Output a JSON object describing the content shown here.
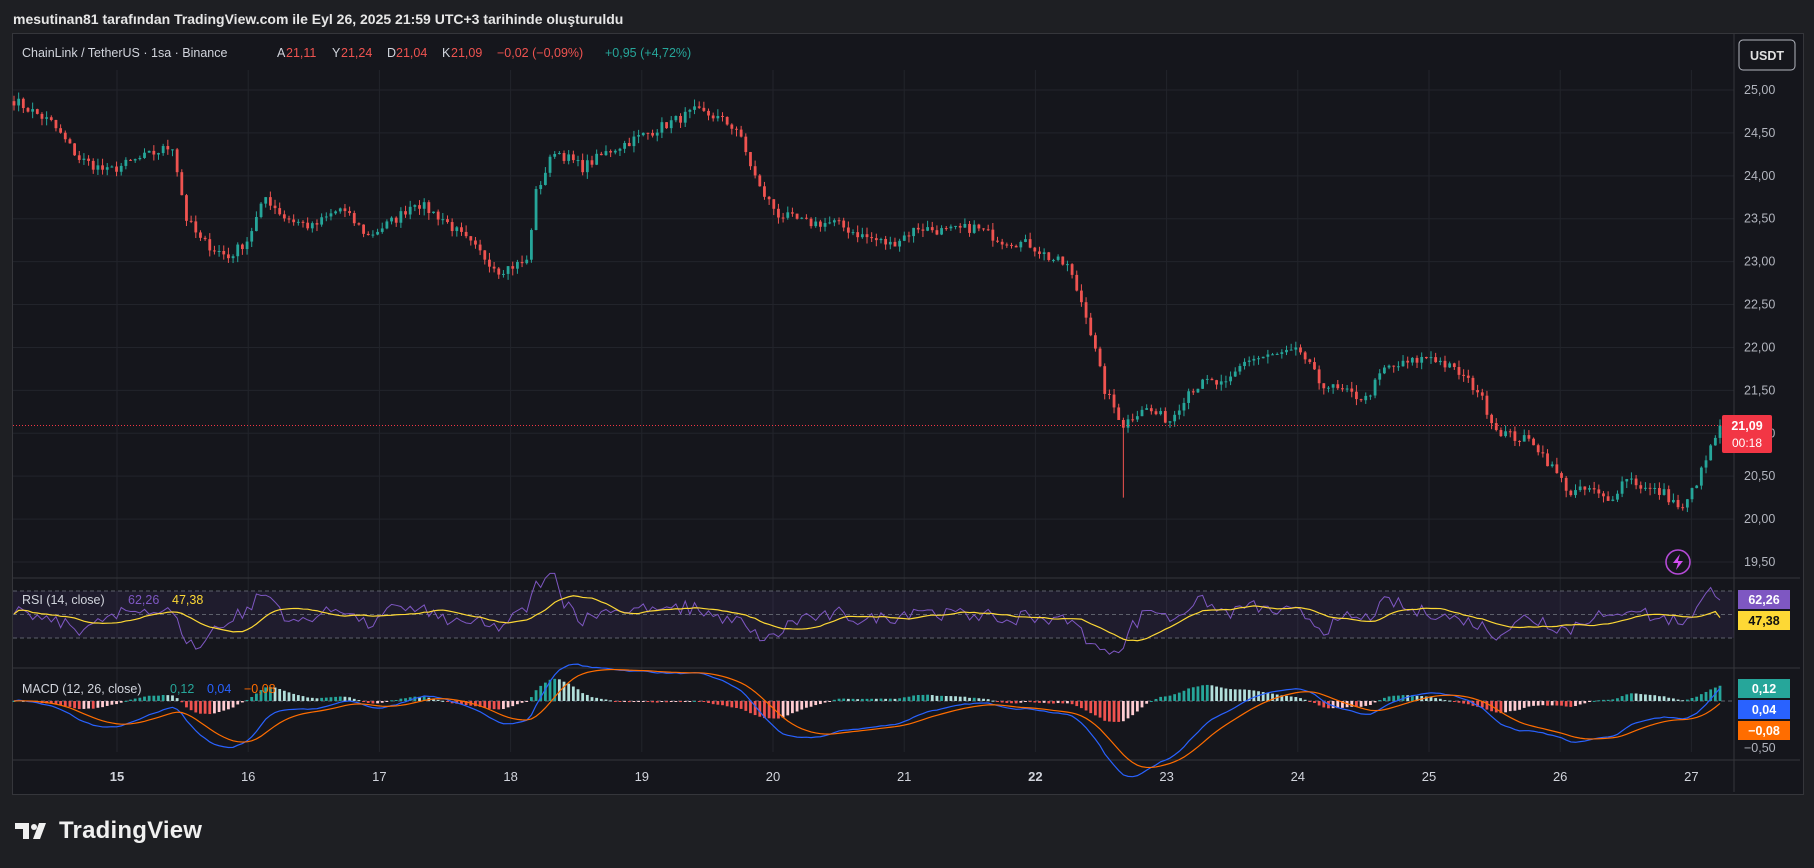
{
  "caption": "mesutinan81 tarafından TradingView.com ile Eyl 26, 2025 21:59 UTC+3 tarihinde oluşturuldu",
  "brand": "TradingView",
  "header": {
    "symbol": "ChainLink / TetherUS · 1sa · Binance",
    "o_label": "A",
    "o_value": "21,11",
    "h_label": "Y",
    "h_value": "21,24",
    "l_label": "D",
    "l_value": "21,04",
    "c_label": "K",
    "c_value": "21,09",
    "change": "−0,02 (−0,09%)",
    "change2": "+0,95 (+4,72%)"
  },
  "currency": "USDT",
  "colors": {
    "up": "#26a69a",
    "down": "#ef5350",
    "bg": "#15161c",
    "rsi": "#7e57c2",
    "rsi_ma": "#fdd835",
    "macd": "#2962ff",
    "signal": "#ff6d00"
  },
  "chart_data": [
    {
      "type": "candlestick",
      "title": "ChainLink / TetherUS · 1sa · Binance",
      "x_ticks": [
        "15",
        "16",
        "17",
        "18",
        "19",
        "20",
        "21",
        "22",
        "23",
        "24",
        "25",
        "26",
        "27"
      ],
      "y_ticks": [
        "25,00",
        "24,50",
        "24,00",
        "23,50",
        "23,00",
        "22,50",
        "22,00",
        "21,50",
        "21,00",
        "20,50",
        "20,00",
        "19,50"
      ],
      "ylim": [
        19.3,
        25.3
      ],
      "last_price": 21.09,
      "last_price_label": "21,09",
      "countdown": "00:18",
      "key_points": [
        [
          0,
          24.88
        ],
        [
          8,
          24.62
        ],
        [
          14,
          24.2
        ],
        [
          20,
          24.05
        ],
        [
          28,
          24.22
        ],
        [
          34,
          24.35
        ],
        [
          37,
          23.5
        ],
        [
          40,
          23.25
        ],
        [
          46,
          23.05
        ],
        [
          50,
          23.25
        ],
        [
          54,
          23.75
        ],
        [
          58,
          23.52
        ],
        [
          64,
          23.4
        ],
        [
          70,
          23.62
        ],
        [
          76,
          23.3
        ],
        [
          82,
          23.5
        ],
        [
          86,
          23.7
        ],
        [
          92,
          23.5
        ],
        [
          98,
          23.2
        ],
        [
          104,
          22.9
        ],
        [
          110,
          23.0
        ],
        [
          112,
          23.8
        ],
        [
          116,
          24.3
        ],
        [
          122,
          24.1
        ],
        [
          128,
          24.3
        ],
        [
          134,
          24.45
        ],
        [
          140,
          24.6
        ],
        [
          146,
          24.75
        ],
        [
          150,
          24.7
        ],
        [
          155,
          24.55
        ],
        [
          160,
          23.85
        ],
        [
          164,
          23.55
        ],
        [
          170,
          23.45
        ],
        [
          176,
          23.45
        ],
        [
          182,
          23.3
        ],
        [
          188,
          23.2
        ],
        [
          194,
          23.4
        ],
        [
          200,
          23.35
        ],
        [
          206,
          23.4
        ],
        [
          212,
          23.25
        ],
        [
          218,
          23.2
        ],
        [
          222,
          23.05
        ],
        [
          226,
          22.95
        ],
        [
          230,
          22.4
        ],
        [
          234,
          21.5
        ],
        [
          238,
          21.1
        ],
        [
          242,
          21.3
        ],
        [
          248,
          21.15
        ],
        [
          252,
          21.5
        ],
        [
          256,
          21.6
        ],
        [
          260,
          21.55
        ],
        [
          264,
          21.85
        ],
        [
          270,
          21.9
        ],
        [
          276,
          21.95
        ],
        [
          280,
          21.6
        ],
        [
          284,
          21.5
        ],
        [
          290,
          21.4
        ],
        [
          294,
          21.75
        ],
        [
          298,
          21.8
        ],
        [
          304,
          21.9
        ],
        [
          310,
          21.7
        ],
        [
          314,
          21.5
        ],
        [
          318,
          21.05
        ],
        [
          322,
          20.95
        ],
        [
          326,
          20.9
        ],
        [
          330,
          20.6
        ],
        [
          334,
          20.3
        ],
        [
          338,
          20.35
        ],
        [
          342,
          20.2
        ],
        [
          346,
          20.5
        ],
        [
          350,
          20.35
        ],
        [
          354,
          20.3
        ],
        [
          358,
          20.1
        ],
        [
          362,
          20.55
        ],
        [
          366,
          21.09
        ]
      ]
    },
    {
      "type": "line",
      "title": "RSI (14, close)",
      "values_label": [
        "62,26",
        "47,38"
      ],
      "series": [
        {
          "name": "RSI",
          "last": 62.26
        },
        {
          "name": "MA",
          "last": 47.38
        }
      ],
      "ylim": [
        0,
        100
      ]
    },
    {
      "type": "bar",
      "title": "MACD (12, 26, close)",
      "values_label": [
        "0,12",
        "0,04",
        "−0,08"
      ],
      "series": [
        {
          "name": "Histogram",
          "last": 0.12
        },
        {
          "name": "MACD",
          "last": 0.04
        },
        {
          "name": "Signal",
          "last": -0.08
        }
      ],
      "y_ticks": [
        "−0,50"
      ]
    }
  ]
}
